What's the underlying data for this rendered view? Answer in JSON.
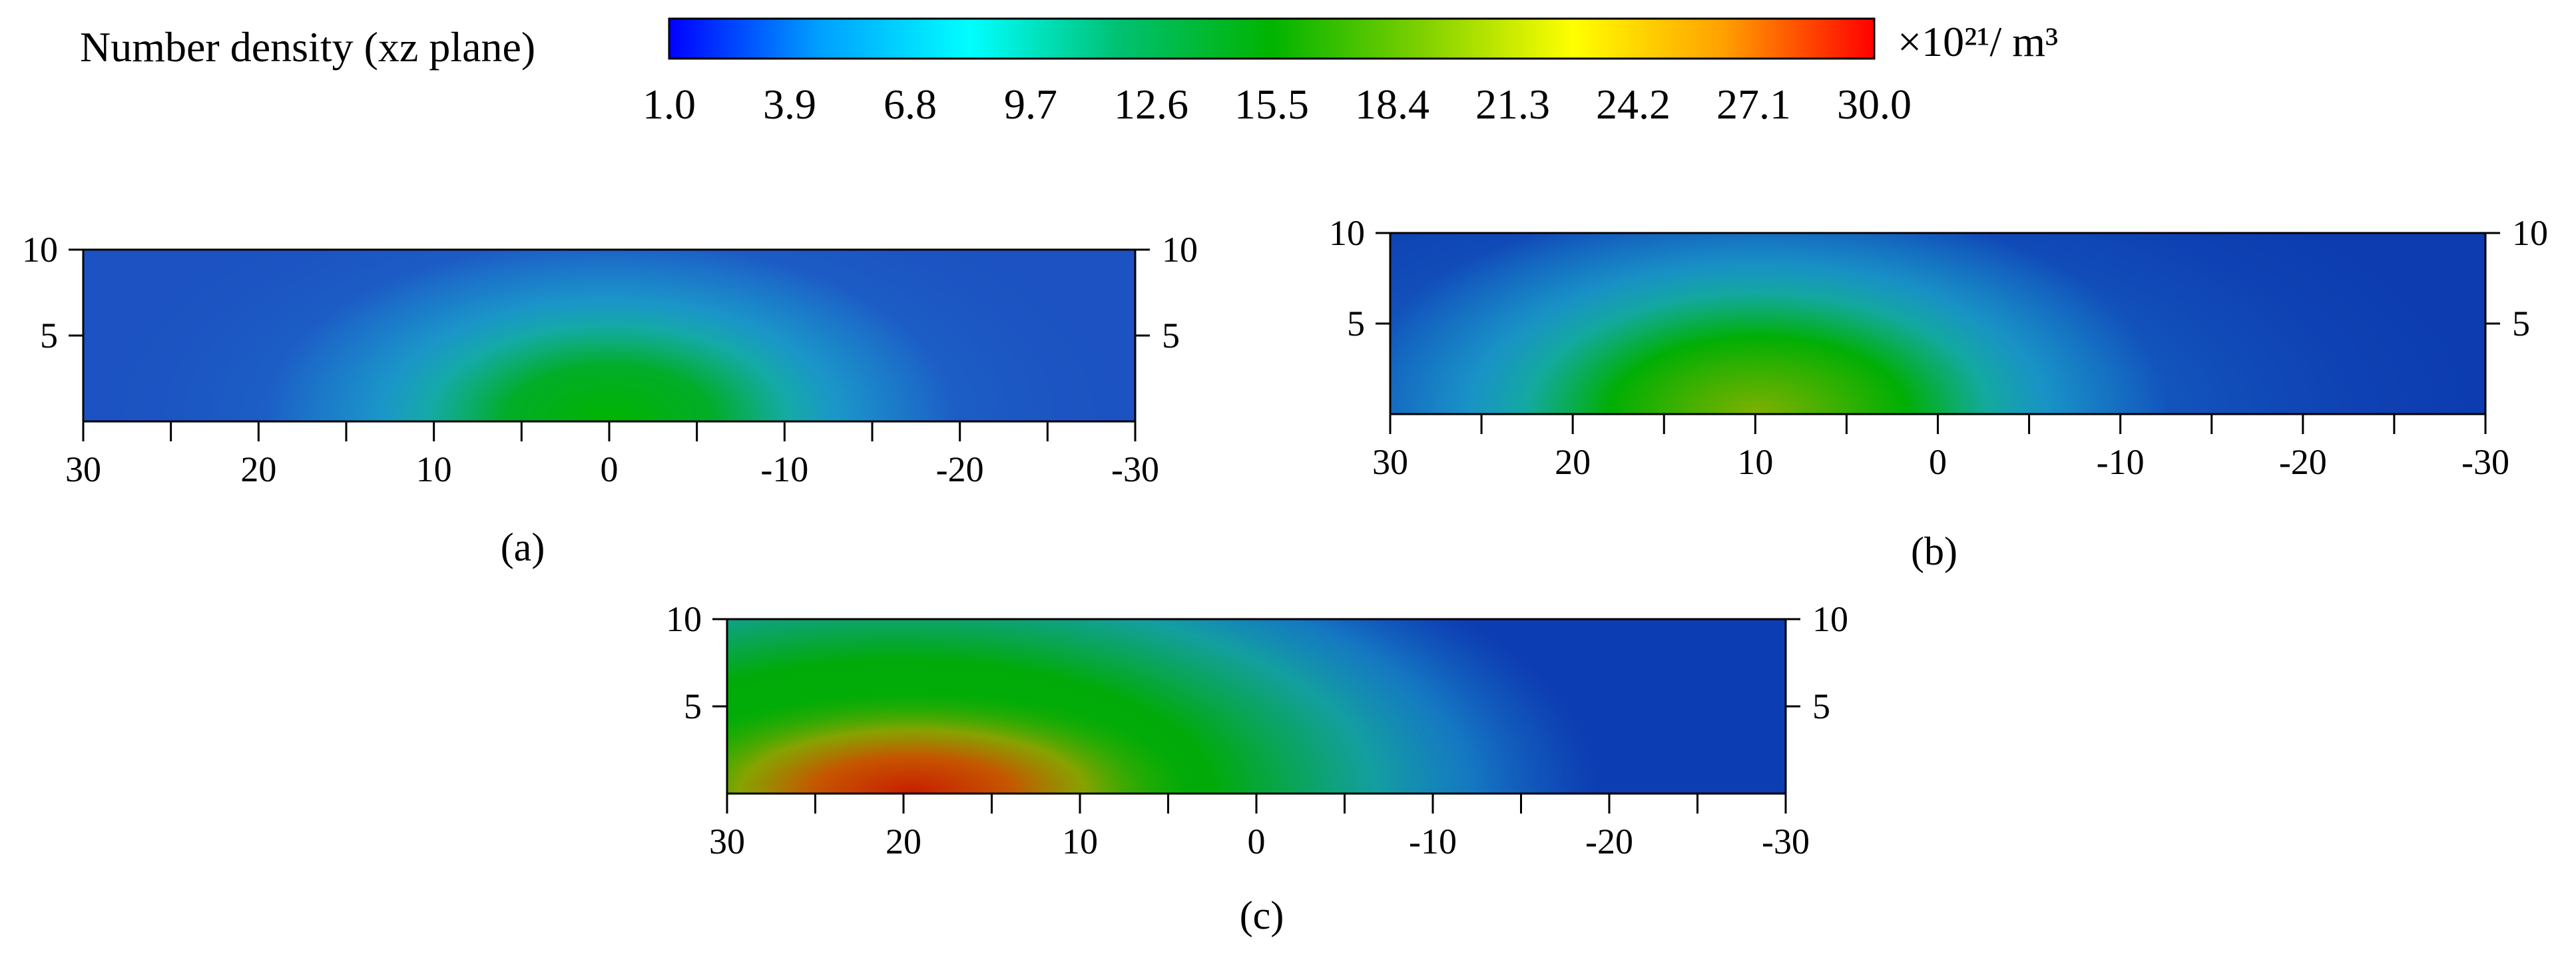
{
  "colorbar": {
    "label": "Number density (xz plane)",
    "unit": "×10²¹/ m³",
    "ticks": [
      "1.0",
      "3.9",
      "6.8",
      "9.7",
      "12.6",
      "15.5",
      "18.4",
      "21.3",
      "24.2",
      "27.1",
      "30.0"
    ],
    "colors": [
      "#0000ff",
      "#00a0ff",
      "#00ffff",
      "#00c070",
      "#00b400",
      "#7fd000",
      "#ffff00",
      "#ffa000",
      "#ff0000"
    ]
  },
  "chart_data": [
    {
      "type": "heatmap",
      "panel_label": "(a)",
      "x_ticks": [
        "30",
        "20",
        "10",
        "0",
        "-10",
        "-20",
        "-30"
      ],
      "y_ticks": [
        "5",
        "10"
      ],
      "right_y_ticks": [
        "5",
        "10"
      ],
      "xlim": [
        30,
        -30
      ],
      "ylim": [
        0,
        10
      ],
      "peak": {
        "x": 0,
        "z": 0,
        "value": 14.5
      },
      "edge_value": 4.5
    },
    {
      "type": "heatmap",
      "panel_label": "(b)",
      "x_ticks": [
        "30",
        "20",
        "10",
        "0",
        "-10",
        "-20",
        "-30"
      ],
      "y_ticks": [
        "5",
        "10"
      ],
      "right_y_ticks": [
        "5",
        "10"
      ],
      "xlim": [
        30,
        -30
      ],
      "ylim": [
        0,
        10
      ],
      "peak": {
        "x": 10,
        "z": 0,
        "value": 19.5
      },
      "edge_value": 3.0
    },
    {
      "type": "heatmap",
      "panel_label": "(c)",
      "x_ticks": [
        "30",
        "20",
        "10",
        "0",
        "-10",
        "-20",
        "-30"
      ],
      "y_ticks": [
        "5",
        "10"
      ],
      "right_y_ticks": [
        "5",
        "10"
      ],
      "xlim": [
        30,
        -30
      ],
      "ylim": [
        0,
        10
      ],
      "peak": {
        "x": 20,
        "z": 0,
        "value": 29.0
      },
      "edge_value": 3.0
    }
  ]
}
